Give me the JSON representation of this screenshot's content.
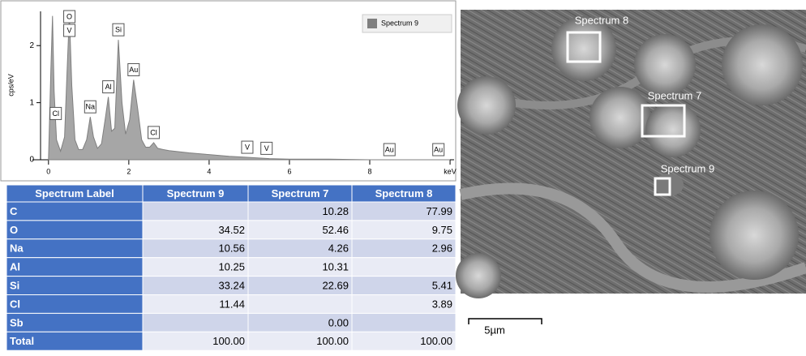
{
  "chart_data": {
    "type": "area",
    "y_label": "cps/eV",
    "legend": "Spectrum 9",
    "legend_position": "upper right",
    "color": "#7f7f7f",
    "x": [
      0,
      0.06,
      0.1,
      0.14,
      0.2,
      0.3,
      0.4,
      0.46,
      0.52,
      0.58,
      0.66,
      0.75,
      0.85,
      0.95,
      1.04,
      1.12,
      1.22,
      1.32,
      1.42,
      1.49,
      1.57,
      1.65,
      1.74,
      1.83,
      1.92,
      2.02,
      2.12,
      2.22,
      2.32,
      2.42,
      2.52,
      2.62,
      2.72,
      2.85,
      3.0,
      3.5,
      4.0,
      4.5,
      5.0,
      5.5,
      6.0,
      7.0,
      8.0,
      9.0,
      10.0
    ],
    "values": [
      0,
      1.6,
      2.52,
      1.2,
      0.35,
      0.15,
      0.4,
      1.5,
      2.55,
      1.3,
      0.35,
      0.18,
      0.18,
      0.35,
      0.75,
      0.4,
      0.2,
      0.28,
      0.75,
      1.1,
      0.5,
      0.55,
      2.1,
      1.0,
      0.45,
      0.7,
      1.4,
      0.9,
      0.35,
      0.22,
      0.22,
      0.3,
      0.2,
      0.18,
      0.16,
      0.12,
      0.09,
      0.06,
      0.04,
      0.02,
      0.01,
      0.01,
      0.0,
      0.0,
      0
    ],
    "xlim": [
      -0.4,
      10.1
    ],
    "ylim": [
      0,
      2.6
    ],
    "xticks": [
      0,
      2,
      4,
      6,
      8,
      {
        "value": 10,
        "label": "keV"
      }
    ],
    "yticks": [
      0,
      1,
      2
    ],
    "annotations": [
      {
        "label": "Cl",
        "x": 0.18
      },
      {
        "label": "O",
        "x": 0.52
      },
      {
        "label": "V",
        "x": 0.52
      },
      {
        "label": "Na",
        "x": 1.04
      },
      {
        "label": "Al",
        "x": 1.49
      },
      {
        "label": "Si",
        "x": 1.74
      },
      {
        "label": "Au",
        "x": 2.12
      },
      {
        "label": "Cl",
        "x": 2.62
      },
      {
        "label": "V",
        "x": 4.95
      },
      {
        "label": "V",
        "x": 5.43
      },
      {
        "label": "Au",
        "x": 8.49
      },
      {
        "label": "Au",
        "x": 9.71
      }
    ]
  },
  "table": {
    "header": [
      "Spectrum Label",
      "Spectrum 9",
      "Spectrum 7",
      "Spectrum 8"
    ],
    "rows": [
      [
        "C",
        null,
        "10.28",
        "77.99"
      ],
      [
        "O",
        "34.52",
        "52.46",
        "9.75"
      ],
      [
        "Na",
        "10.56",
        "4.26",
        "2.96"
      ],
      [
        "Al",
        "10.25",
        "10.31",
        null
      ],
      [
        "Si",
        "33.24",
        "22.69",
        "5.41"
      ],
      [
        "Cl",
        "11.44",
        null,
        "3.89"
      ],
      [
        "Sb",
        null,
        "0.00",
        null
      ],
      [
        "Total",
        "100.00",
        "100.00",
        "100.00"
      ]
    ]
  },
  "image": {
    "regions": [
      {
        "label": "Spectrum 8"
      },
      {
        "label": "Spectrum 7"
      },
      {
        "label": "Spectrum 9"
      }
    ],
    "scale_bar": "5µm"
  }
}
